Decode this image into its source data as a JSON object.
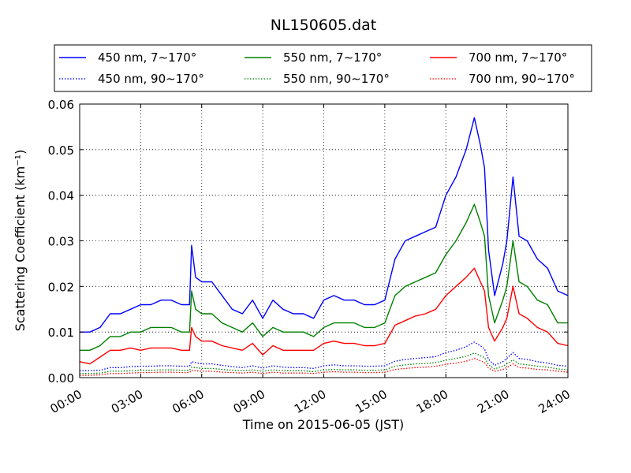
{
  "chart_data": {
    "type": "line",
    "title": "NL150605.dat",
    "xlabel": "Time on 2015-06-05 (JST)",
    "ylabel": "Scattering Coefficient (km⁻¹)",
    "ylim": [
      0,
      0.06
    ],
    "xlim": [
      0,
      24
    ],
    "x_tick_labels": [
      "00:00",
      "03:00",
      "06:00",
      "09:00",
      "12:00",
      "15:00",
      "18:00",
      "21:00",
      "24:00"
    ],
    "y_tick_labels": [
      "0.00",
      "0.01",
      "0.02",
      "0.03",
      "0.04",
      "0.05",
      "0.06"
    ],
    "grid": true,
    "legend_position": "top",
    "x_hours": [
      0,
      0.5,
      1,
      1.5,
      2,
      2.5,
      3,
      3.5,
      4,
      4.5,
      5,
      5.4,
      5.5,
      5.7,
      6,
      6.5,
      7,
      7.5,
      8,
      8.5,
      9,
      9.5,
      10,
      10.5,
      11,
      11.5,
      12,
      12.5,
      13,
      13.5,
      14,
      14.5,
      15,
      15.5,
      16,
      16.5,
      17,
      17.5,
      18,
      18.5,
      19,
      19.4,
      19.7,
      19.9,
      20.1,
      20.4,
      20.8,
      21,
      21.3,
      21.6,
      22,
      22.5,
      23,
      23.5,
      24
    ],
    "series": [
      {
        "name": "450 nm, 7∼170°",
        "color": "#0000ff",
        "style": "solid",
        "values": [
          0.01,
          0.01,
          0.011,
          0.014,
          0.014,
          0.015,
          0.016,
          0.016,
          0.017,
          0.017,
          0.016,
          0.016,
          0.029,
          0.022,
          0.021,
          0.021,
          0.018,
          0.015,
          0.014,
          0.017,
          0.013,
          0.017,
          0.015,
          0.014,
          0.014,
          0.013,
          0.017,
          0.018,
          0.017,
          0.017,
          0.016,
          0.016,
          0.017,
          0.026,
          0.03,
          0.031,
          0.032,
          0.033,
          0.04,
          0.044,
          0.05,
          0.057,
          0.051,
          0.046,
          0.028,
          0.018,
          0.025,
          0.03,
          0.044,
          0.031,
          0.03,
          0.026,
          0.024,
          0.019,
          0.018
        ]
      },
      {
        "name": "550 nm, 7∼170°",
        "color": "#008000",
        "style": "solid",
        "values": [
          0.006,
          0.006,
          0.007,
          0.009,
          0.009,
          0.01,
          0.01,
          0.011,
          0.011,
          0.011,
          0.01,
          0.01,
          0.019,
          0.015,
          0.014,
          0.014,
          0.012,
          0.011,
          0.01,
          0.012,
          0.009,
          0.011,
          0.01,
          0.01,
          0.01,
          0.009,
          0.011,
          0.012,
          0.012,
          0.012,
          0.011,
          0.011,
          0.012,
          0.018,
          0.02,
          0.021,
          0.022,
          0.023,
          0.027,
          0.03,
          0.034,
          0.038,
          0.034,
          0.031,
          0.018,
          0.012,
          0.017,
          0.02,
          0.03,
          0.021,
          0.02,
          0.017,
          0.016,
          0.012,
          0.012
        ]
      },
      {
        "name": "700 nm, 7∼170°",
        "color": "#ff0000",
        "style": "solid",
        "values": [
          0.0035,
          0.003,
          0.0045,
          0.006,
          0.006,
          0.0065,
          0.006,
          0.0065,
          0.0065,
          0.0065,
          0.006,
          0.006,
          0.011,
          0.009,
          0.008,
          0.008,
          0.007,
          0.0065,
          0.006,
          0.0075,
          0.005,
          0.007,
          0.006,
          0.006,
          0.006,
          0.006,
          0.0075,
          0.008,
          0.0075,
          0.0075,
          0.007,
          0.007,
          0.0075,
          0.0115,
          0.0125,
          0.0135,
          0.014,
          0.015,
          0.018,
          0.02,
          0.022,
          0.024,
          0.021,
          0.019,
          0.011,
          0.008,
          0.011,
          0.013,
          0.02,
          0.014,
          0.013,
          0.011,
          0.01,
          0.0075,
          0.007
        ]
      },
      {
        "name": "450 nm, 90∼170°",
        "color": "#0000ff",
        "style": "dotted",
        "values": [
          0.0015,
          0.0015,
          0.0016,
          0.0022,
          0.0022,
          0.0024,
          0.0025,
          0.0025,
          0.0026,
          0.0026,
          0.0025,
          0.0025,
          0.0035,
          0.0033,
          0.003,
          0.003,
          0.0027,
          0.0024,
          0.0022,
          0.0026,
          0.0021,
          0.0026,
          0.0023,
          0.0022,
          0.0022,
          0.002,
          0.0026,
          0.0028,
          0.0026,
          0.0026,
          0.0025,
          0.0025,
          0.0026,
          0.0036,
          0.004,
          0.0042,
          0.0044,
          0.0046,
          0.0055,
          0.006,
          0.0068,
          0.0078,
          0.007,
          0.0063,
          0.004,
          0.0027,
          0.0035,
          0.0042,
          0.0055,
          0.0042,
          0.004,
          0.0035,
          0.0032,
          0.0027,
          0.0025
        ]
      },
      {
        "name": "550 nm, 90∼170°",
        "color": "#008000",
        "style": "dotted",
        "values": [
          0.0009,
          0.0009,
          0.001,
          0.0014,
          0.0014,
          0.0015,
          0.0016,
          0.0016,
          0.0017,
          0.0017,
          0.0016,
          0.0016,
          0.0023,
          0.0022,
          0.002,
          0.002,
          0.0018,
          0.0016,
          0.0015,
          0.0017,
          0.0014,
          0.0017,
          0.0015,
          0.0015,
          0.0015,
          0.0013,
          0.0017,
          0.0018,
          0.0017,
          0.0017,
          0.0016,
          0.0016,
          0.0017,
          0.0025,
          0.0028,
          0.003,
          0.0031,
          0.0033,
          0.0038,
          0.0042,
          0.0047,
          0.0054,
          0.0048,
          0.0044,
          0.0028,
          0.0019,
          0.0025,
          0.003,
          0.0039,
          0.003,
          0.0028,
          0.0025,
          0.0023,
          0.0019,
          0.0017
        ]
      },
      {
        "name": "700 nm, 90∼170°",
        "color": "#ff0000",
        "style": "dotted",
        "values": [
          0.0005,
          0.0005,
          0.0006,
          0.0009,
          0.0009,
          0.001,
          0.0011,
          0.0011,
          0.0012,
          0.0012,
          0.0011,
          0.0011,
          0.0016,
          0.0015,
          0.0014,
          0.0014,
          0.0012,
          0.0011,
          0.001,
          0.0012,
          0.0009,
          0.0012,
          0.001,
          0.001,
          0.001,
          0.0009,
          0.0012,
          0.0013,
          0.0012,
          0.0012,
          0.0011,
          0.0011,
          0.0012,
          0.0018,
          0.002,
          0.0022,
          0.0023,
          0.0025,
          0.0029,
          0.0032,
          0.0036,
          0.0042,
          0.0037,
          0.0033,
          0.0021,
          0.0014,
          0.0018,
          0.0022,
          0.003,
          0.0022,
          0.0021,
          0.0018,
          0.0017,
          0.0014,
          0.0012
        ]
      }
    ]
  }
}
